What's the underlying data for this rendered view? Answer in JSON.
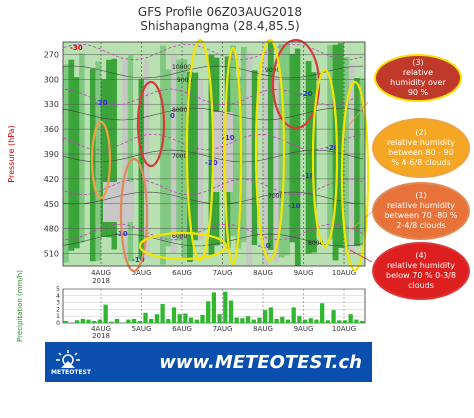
{
  "chart_data": [
    {
      "type": "heatmap",
      "title": "GFS Profile 06Z03AUG2018",
      "subtitle": "Shishapangma (28.4,85.5)",
      "ylabel": "Pressure (hPa)",
      "yticks": [
        270,
        300,
        330,
        360,
        390,
        420,
        450,
        480,
        510
      ],
      "xticks": [
        "4AUG",
        "5AUG",
        "6AUG",
        "7AUG",
        "8AUG",
        "9AUG",
        "10AUG"
      ],
      "year_label": "2018",
      "ylim": [
        525,
        255
      ],
      "colors": {
        "humid_gt_90": "#2e9e2e",
        "humid_80_90": "#7bc77b",
        "humid_70_80": "#b8e0b0",
        "dry": "#c7c7c7"
      },
      "isotherm_labels": [
        "-30",
        "-20",
        "-10",
        "0",
        "-20",
        "-10",
        "-10",
        "-10",
        "-20",
        "-20",
        "-10",
        "-10"
      ],
      "geopotential_labels": [
        "10000",
        "9000",
        "8000",
        "7000",
        "6000",
        "9000",
        "7000",
        "6000"
      ]
    },
    {
      "type": "bar",
      "ylabel": "Precipitation (mm/h)",
      "yticks": [
        0,
        1,
        2,
        3,
        4,
        5
      ],
      "ylim": [
        0,
        5
      ],
      "xticks": [
        "4AUG",
        "5AUG",
        "6AUG",
        "7AUG",
        "8AUG",
        "9AUG",
        "10AUG"
      ],
      "year_label": "2018",
      "values": [
        0.3,
        0,
        0.4,
        0.6,
        0.5,
        0.3,
        0.5,
        2.7,
        0.2,
        0.6,
        0,
        0.5,
        0.6,
        0.3,
        1.5,
        0.6,
        1.3,
        2.8,
        0.6,
        2.3,
        1.3,
        1.4,
        0.8,
        0.5,
        1.2,
        3.2,
        4.5,
        1.3,
        4.6,
        3.3,
        0.8,
        0.7,
        1.0,
        0.5,
        0.8,
        1.9,
        2.3,
        0.6,
        0.9,
        0.5,
        2.3,
        1.0,
        0.5,
        0.7,
        0.5,
        2.9,
        0.4,
        1.9,
        0.4,
        0.4,
        1.3,
        0.5,
        0.3
      ]
    }
  ],
  "legend": [
    {
      "key": "blue",
      "number": "(3)",
      "text": "relative humidity over 90 %",
      "fill": "#c0392b",
      "ring": "#f5e400"
    },
    {
      "key": "orange",
      "number": "(2)",
      "text": "relative humidity between 80 - 90 % 4-6/8 clouds",
      "fill": "#f5a623",
      "ring": "#f0a040"
    },
    {
      "key": "brown",
      "number": "(1)",
      "text": "relative humidity between 70 -80 % 2-4/8 clouds",
      "fill": "#e8733a",
      "ring": "#e08a55"
    },
    {
      "key": "red",
      "number": "(4)",
      "text": "relative humidity below 70 % 0-3/8 clouds",
      "fill": "#dd1f1f",
      "ring": "#d83a3a"
    }
  ],
  "banner": {
    "url": "www.METEOTEST.ch",
    "logo_text": "METEOTEST"
  }
}
